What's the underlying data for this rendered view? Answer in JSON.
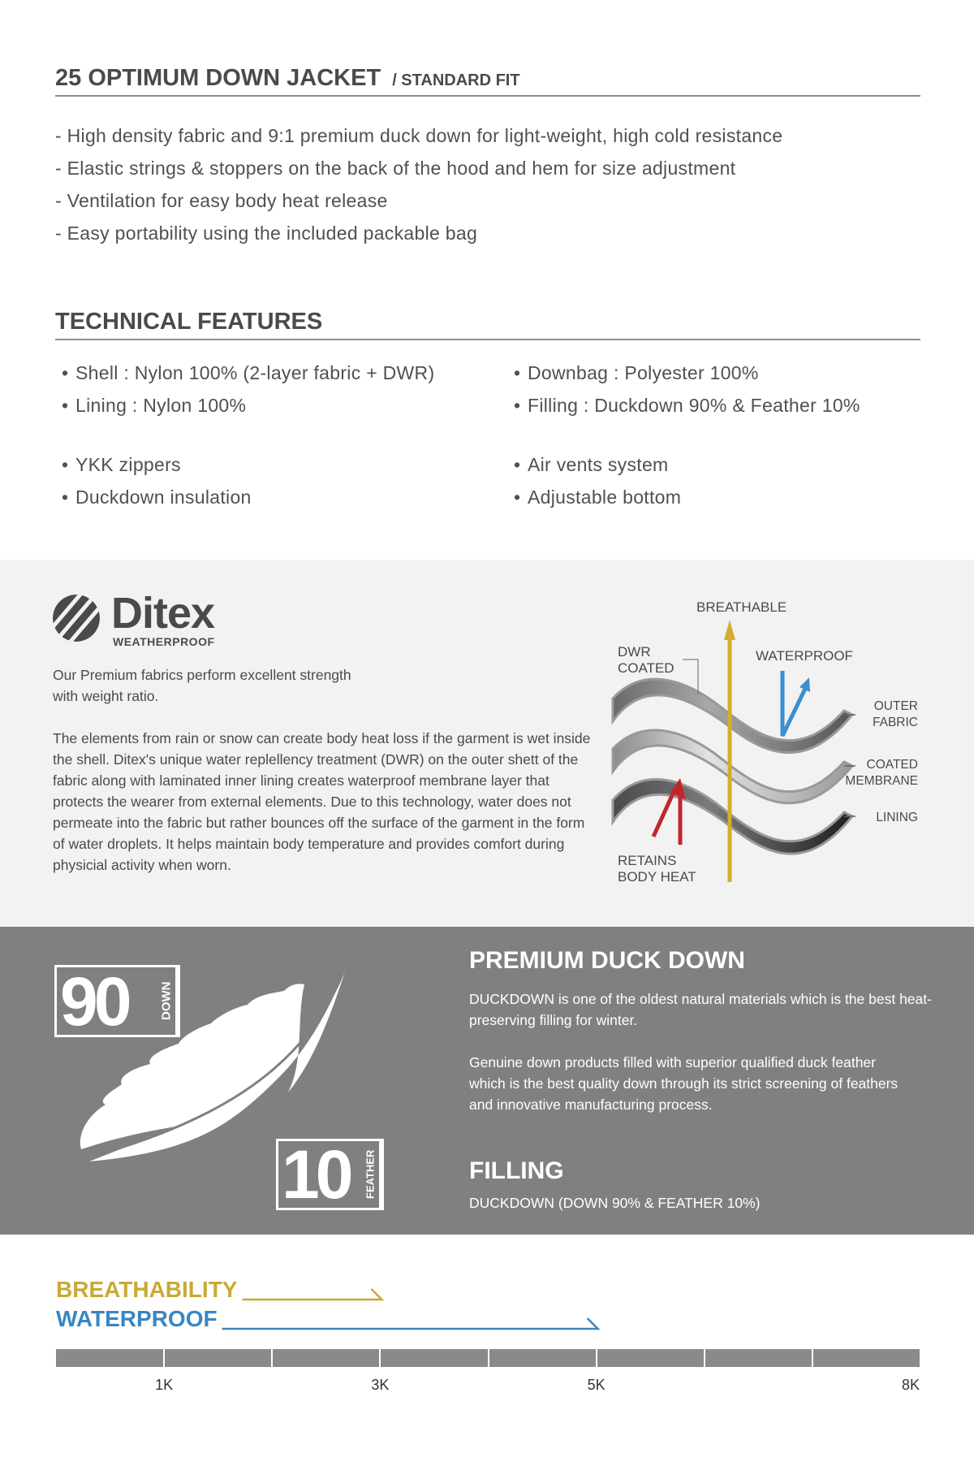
{
  "product": {
    "title": "25 OPTIMUM DOWN JACKET",
    "fit": "/ STANDARD FIT"
  },
  "highlights": [
    "- High density fabric and 9:1 premium duck down for light-weight, high cold resistance",
    "- Elastic strings & stoppers on the back of the hood and hem for size adjustment",
    "- Ventilation for easy body heat release",
    "- Easy portability using the included packable bag"
  ],
  "technical": {
    "title": "TECHNICAL FEATURES",
    "bullet": "•",
    "left": [
      "Shell : Nylon 100% (2-layer fabric + DWR)",
      "Lining : Nylon 100%",
      "YKK zippers",
      "Duckdown insulation"
    ],
    "right": [
      "Downbag : Polyester 100%",
      "Filling : Duckdown 90% & Feather 10%",
      "Air vents system",
      "Adjustable bottom"
    ]
  },
  "ditex": {
    "logo_name": "Ditex",
    "logo_sub": "WEATHERPROOF",
    "intro": [
      "Our Premium fabrics perform excellent strength",
      "with weight ratio."
    ],
    "body": "The elements from rain or snow can create body heat loss if the garment is wet inside the shell. Ditex's unique water replellency treatment (DWR)  on the outer shett of the fabric along with laminated inner lining creates waterproof membrane layer that protects the wearer from external elements. Due to this technology, water does not permeate into the fabric but rather bounces off the surface of the garment in the form of water droplets. It helps maintain body temperature and provides comfort during physicial activity when worn.",
    "diagram": {
      "breathable": "BREATHABLE",
      "dwr": [
        "DWR",
        "COATED"
      ],
      "waterproof": "WATERPROOF",
      "outer": [
        "OUTER",
        "FABRIC"
      ],
      "membrane": [
        "COATED",
        "MEMBRANE"
      ],
      "lining": "LINING",
      "retains": [
        "RETAINS",
        "BODY HEAT"
      ],
      "colors": {
        "breathable": "#d4ae2c",
        "waterproof": "#3a8fd0",
        "heat": "#c0272d"
      }
    }
  },
  "down": {
    "badge_down": {
      "value": "90",
      "label": "DOWN"
    },
    "badge_feather": {
      "value": "10",
      "label": "FEATHER"
    },
    "title": "PREMIUM DUCK DOWN",
    "p1": "DUCKDOWN is one of the oldest natural materials which is the best heat-preserving filling for winter.",
    "p2": "Genuine down products filled with superior qualified duck feather which is the best quality down through its strict screening of feathers and innovative manufacturing process.",
    "filling_title": "FILLING",
    "filling_value": "DUCKDOWN (DOWN 90% & FEATHER 10%)"
  },
  "rating": {
    "max_k": 8,
    "items": [
      {
        "label": "BREATHABILITY",
        "value_k": 3,
        "color": "#c9a935"
      },
      {
        "label": "WATERPROOF",
        "value_k": 5,
        "color": "#3a86c2"
      }
    ],
    "ticks": [
      {
        "k": 1,
        "label": "1K"
      },
      {
        "k": 3,
        "label": "3K"
      },
      {
        "k": 5,
        "label": "5K"
      },
      {
        "k": 8,
        "label": "8K"
      }
    ]
  }
}
